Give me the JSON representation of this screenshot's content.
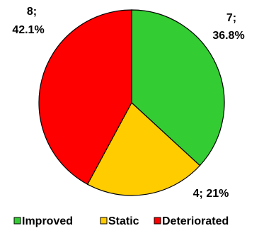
{
  "chart_data": {
    "type": "pie",
    "title": "",
    "slices": [
      {
        "name": "Improved",
        "value": 7,
        "label_count": "7;",
        "label_pct": "36.8%",
        "color": "#33cc33"
      },
      {
        "name": "Static",
        "value": 4,
        "label_count": "4; 21%",
        "label_pct": "",
        "color": "#ffcc00"
      },
      {
        "name": "Deteriorated",
        "value": 8,
        "label_count": "8;",
        "label_pct": "42.1%",
        "color": "#ff0000"
      }
    ],
    "start_angle_deg": 0,
    "direction": "clockwise",
    "legend": {
      "position": "bottom",
      "items": [
        "Improved",
        "Static",
        "Deteriorated"
      ]
    }
  }
}
